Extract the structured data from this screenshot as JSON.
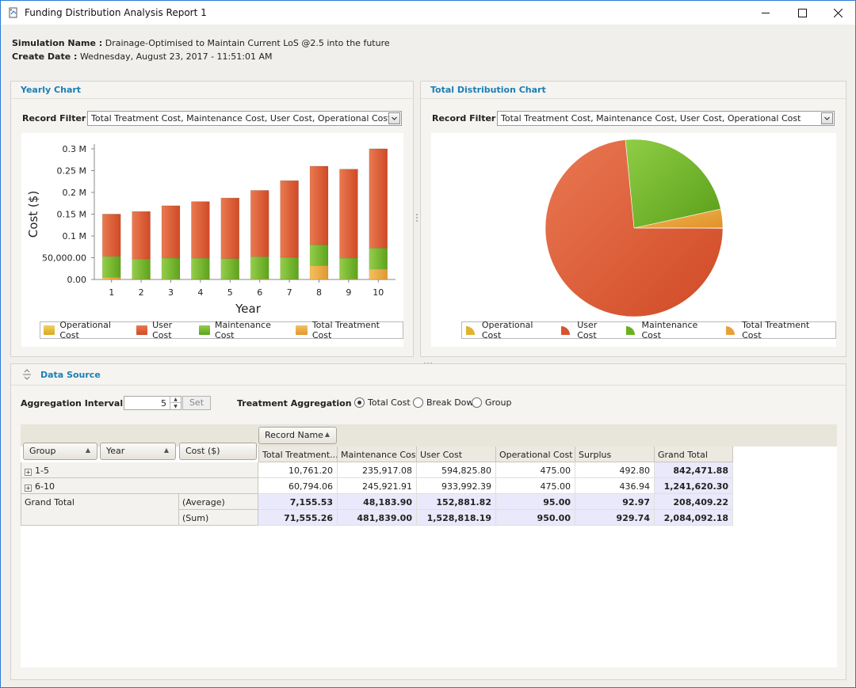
{
  "window": {
    "title": "Funding Distribution Analysis Report 1"
  },
  "meta": {
    "simulation_label": "Simulation Name :",
    "simulation_value": "Drainage-Optimised to Maintain Current LoS @2.5 into the future",
    "date_label": "Create Date :",
    "date_value": "Wednesday, August 23, 2017 - 11:51:01 AM"
  },
  "colors": {
    "operational": "#e0b231",
    "user": "#d9532f",
    "maintenance": "#6bb023",
    "treatment": "#e8a03a",
    "accent": "#1b7fb4"
  },
  "yearly": {
    "title": "Yearly Chart",
    "filter_label": "Record Filter :",
    "filter_value": "Total Treatment Cost, Maintenance Cost, User Cost, Operational Cost"
  },
  "total": {
    "title": "Total Distribution Chart",
    "filter_label": "Record Filter :",
    "filter_value": "Total Treatment Cost, Maintenance Cost, User Cost, Operational Cost"
  },
  "legend": [
    "Operational Cost",
    "User Cost",
    "Maintenance Cost",
    "Total Treatment Cost"
  ],
  "chart_data": [
    {
      "type": "bar",
      "stacked": true,
      "xlabel": "Year",
      "ylabel": "Cost ($)",
      "categories": [
        "1",
        "2",
        "3",
        "4",
        "5",
        "6",
        "7",
        "8",
        "9",
        "10"
      ],
      "ylim": [
        0,
        300000
      ],
      "yticks": [
        "0.00",
        "50,000.00",
        "0.1 M",
        "0.15 M",
        "0.2 M",
        "0.25 M",
        "0.3 M"
      ],
      "series": [
        {
          "name": "Total Treatment Cost",
          "values": [
            5000,
            1000,
            1200,
            800,
            1000,
            1500,
            900,
            32000,
            1200,
            24000
          ]
        },
        {
          "name": "Maintenance Cost",
          "values": [
            48000,
            46000,
            48000,
            48000,
            47000,
            51000,
            50000,
            48000,
            48000,
            48000
          ]
        },
        {
          "name": "User Cost",
          "values": [
            97000,
            109000,
            120000,
            130000,
            139000,
            152000,
            176000,
            180000,
            204000,
            228000
          ]
        },
        {
          "name": "Operational Cost",
          "values": [
            95,
            95,
            95,
            95,
            95,
            95,
            95,
            95,
            95,
            95
          ]
        }
      ],
      "legend": "bottom"
    },
    {
      "type": "pie",
      "labels": [
        "Total Treatment Cost",
        "Maintenance Cost",
        "User Cost",
        "Operational Cost"
      ],
      "values": [
        71555.26,
        481839.0,
        1528818.19,
        950.0
      ],
      "legend": "bottom"
    }
  ],
  "data_source": {
    "title": "Data Source",
    "agg_label": "Aggregation Interval :",
    "agg_value": "5",
    "set_label": "Set",
    "treat_label": "Treatment Aggregation :",
    "radios": [
      "Total Cost",
      "Break Down",
      "Group"
    ],
    "selected_radio": "Total Cost"
  },
  "pivot": {
    "column_field": "Record Name",
    "row_fields": [
      "Group",
      "Year",
      "Cost ($)"
    ],
    "columns": [
      "Total Treatment...",
      "Maintenance Cost",
      "User Cost",
      "Operational Cost",
      "Surplus",
      "Grand Total"
    ],
    "rows": [
      {
        "label": "1-5",
        "values": [
          "10,761.20",
          "235,917.08",
          "594,825.80",
          "475.00",
          "492.80",
          "842,471.88"
        ]
      },
      {
        "label": "6-10",
        "values": [
          "60,794.06",
          "245,921.91",
          "933,992.39",
          "475.00",
          "436.94",
          "1,241,620.30"
        ]
      }
    ],
    "grand_total_label": "Grand Total",
    "totals": [
      {
        "label": "(Average)",
        "values": [
          "7,155.53",
          "48,183.90",
          "152,881.82",
          "95.00",
          "92.97",
          "208,409.22"
        ]
      },
      {
        "label": "(Sum)",
        "values": [
          "71,555.26",
          "481,839.00",
          "1,528,818.19",
          "950.00",
          "929.74",
          "2,084,092.18"
        ]
      }
    ]
  }
}
